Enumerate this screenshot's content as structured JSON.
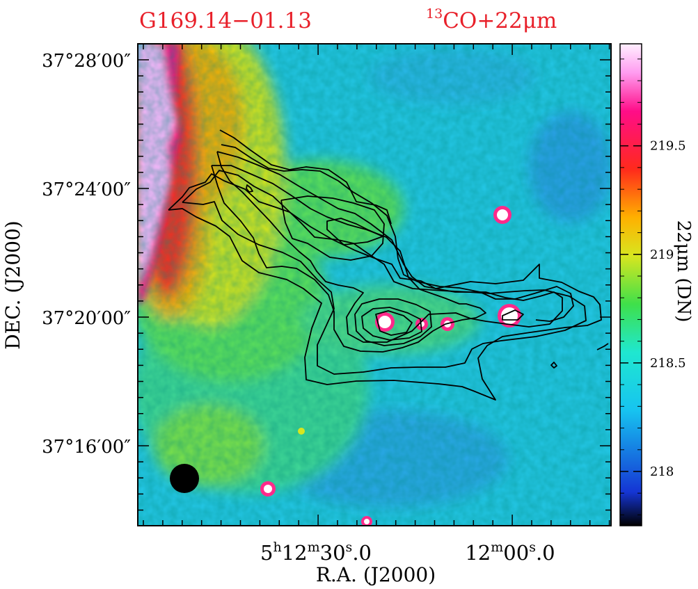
{
  "chart_data": {
    "type": "heatmap",
    "title_left": "G169.14−01.13",
    "title_right": {
      "sup": "13",
      "text": "CO+22μm"
    },
    "xlabel": "R.A. (J2000)",
    "ylabel": "DEC. (J2000)",
    "colorbar_label": "22μm (DN)",
    "colorbar_range": [
      217.75,
      219.97
    ],
    "colorbar_ticks": [
      {
        "value": 218,
        "label": "218"
      },
      {
        "value": 218.5,
        "label": "218.5"
      },
      {
        "value": 219,
        "label": "219"
      },
      {
        "value": 219.5,
        "label": "219.5"
      }
    ],
    "x_ticks": [
      {
        "h": "5",
        "m": "12",
        "s": "30",
        "frac": ".0",
        "full": true
      },
      {
        "m": "12",
        "s": "00",
        "frac": ".0",
        "full": false
      }
    ],
    "y_ticks": [
      {
        "label": "37°28′00″"
      },
      {
        "label": "37°24′00″"
      },
      {
        "label": "37°20′00″"
      },
      {
        "label": "37°16′00″"
      }
    ],
    "beam": "filled-circle",
    "contours": "13CO integrated intensity (black lines)",
    "colormap": [
      "#000000",
      "#1535d4",
      "#17c4f0",
      "#1fe7d0",
      "#3fe04a",
      "#d8e61f",
      "#ffb000",
      "#ff2a1c",
      "#ff0d88",
      "#ffb2ff"
    ]
  }
}
